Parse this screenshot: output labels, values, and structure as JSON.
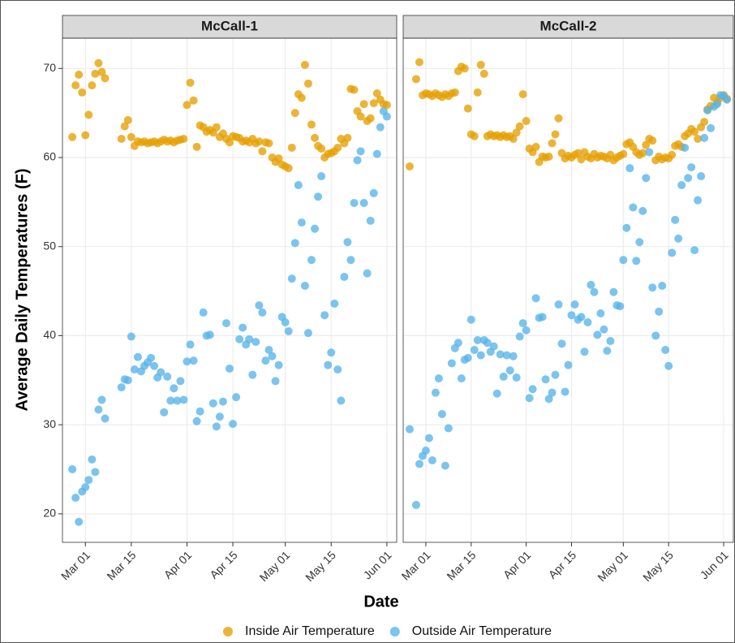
{
  "chart_data": {
    "type": "scatter",
    "x_label": "Date",
    "y_label": "Average Daily Temperatures (F)",
    "xlim": [
      "Feb 22",
      "Jun 04"
    ],
    "xticks": [
      "Mar 01",
      "Mar 15",
      "Apr 01",
      "Apr 15",
      "May 01",
      "May 15",
      "Jun 01"
    ],
    "ylim": [
      16.8,
      73.4
    ],
    "yticks": [
      20,
      30,
      40,
      50,
      60,
      70
    ],
    "grid": true,
    "legend": "bottom",
    "series": [
      {
        "name": "Inside Air Temperature",
        "color": "#E69F00"
      },
      {
        "name": "Outside Air Temperature",
        "color": "#56B4E9"
      }
    ],
    "panels": [
      {
        "title": "McCall-1",
        "x": [
          "Feb 25",
          "Feb 26",
          "Feb 27",
          "Feb 28",
          "Mar 01",
          "Mar 02",
          "Mar 03",
          "Mar 04",
          "Mar 05",
          "Mar 06",
          "Mar 07",
          "Mar 12",
          "Mar 13",
          "Mar 14",
          "Mar 15",
          "Mar 16",
          "Mar 17",
          "Mar 18",
          "Mar 19",
          "Mar 20",
          "Mar 21",
          "Mar 22",
          "Mar 23",
          "Mar 24",
          "Mar 25",
          "Mar 26",
          "Mar 27",
          "Mar 28",
          "Mar 29",
          "Mar 30",
          "Mar 31",
          "Apr 01",
          "Apr 02",
          "Apr 03",
          "Apr 04",
          "Apr 05",
          "Apr 06",
          "Apr 07",
          "Apr 08",
          "Apr 09",
          "Apr 10",
          "Apr 11",
          "Apr 12",
          "Apr 13",
          "Apr 14",
          "Apr 15",
          "Apr 16",
          "Apr 17",
          "Apr 18",
          "Apr 19",
          "Apr 20",
          "Apr 21",
          "Apr 22",
          "Apr 23",
          "Apr 24",
          "Apr 25",
          "Apr 26",
          "Apr 27",
          "Apr 28",
          "Apr 29",
          "Apr 30",
          "May 01",
          "May 02",
          "May 03",
          "May 04",
          "May 05",
          "May 06",
          "May 07",
          "May 08",
          "May 09",
          "May 10",
          "May 11",
          "May 12",
          "May 13",
          "May 14",
          "May 15",
          "May 16",
          "May 17",
          "May 18",
          "May 19",
          "May 20",
          "May 21",
          "May 22",
          "May 23",
          "May 24",
          "May 25",
          "May 26",
          "May 27",
          "May 28",
          "May 29",
          "May 30",
          "May 31",
          "Jun 01"
        ],
        "series": [
          {
            "values": [
              62.3,
              68.1,
              69.3,
              67.3,
              62.5,
              64.8,
              68.1,
              69.4,
              70.6,
              69.6,
              68.9,
              62.1,
              63.5,
              64.2,
              62.3,
              61.3,
              61.8,
              61.7,
              61.8,
              61.6,
              61.7,
              61.8,
              61.6,
              61.8,
              62.0,
              61.8,
              61.9,
              61.7,
              61.9,
              62.0,
              62.1,
              65.9,
              68.4,
              66.4,
              61.2,
              63.6,
              63.4,
              62.9,
              63.1,
              62.8,
              63.4,
              62.3,
              62.7,
              62.1,
              61.7,
              62.4,
              62.3,
              62.2,
              61.8,
              61.9,
              61.7,
              62.1,
              61.6,
              61.8,
              60.7,
              61.7,
              61.6,
              60.0,
              59.5,
              59.9,
              59.2,
              59.0,
              58.8,
              61.1,
              65.0,
              67.1,
              66.7,
              70.4,
              68.3,
              63.7,
              62.2,
              61.3,
              61.0,
              60.0,
              60.4,
              60.5,
              60.7,
              61.1,
              62.1,
              61.6,
              62.2,
              67.7,
              67.6,
              65.2,
              64.6,
              66.0,
              64.1,
              64.4,
              66.1,
              67.2,
              66.5,
              66.0,
              65.9
            ]
          },
          {
            "values": [
              25.0,
              21.8,
              19.1,
              22.5,
              23.0,
              23.8,
              26.1,
              24.7,
              31.7,
              32.8,
              30.7,
              34.2,
              35.1,
              35.0,
              39.9,
              36.2,
              37.6,
              36.0,
              36.6,
              37.0,
              37.5,
              36.6,
              35.3,
              35.9,
              31.4,
              35.4,
              32.7,
              34.1,
              32.7,
              34.9,
              32.8,
              37.1,
              39.0,
              37.2,
              30.4,
              31.5,
              42.6,
              40.0,
              40.1,
              32.4,
              29.8,
              30.9,
              32.6,
              41.4,
              36.3,
              30.1,
              33.1,
              39.6,
              40.9,
              39.0,
              39.6,
              35.6,
              39.3,
              43.4,
              42.6,
              37.2,
              38.4,
              37.7,
              34.9,
              36.7,
              42.1,
              41.5,
              40.5,
              46.4,
              50.4,
              56.9,
              52.7,
              45.6,
              40.3,
              48.5,
              52.0,
              55.6,
              57.9,
              42.3,
              36.7,
              38.1,
              43.6,
              36.2,
              32.7,
              46.6,
              50.5,
              48.5,
              54.9,
              59.7,
              60.7,
              54.9,
              47.0,
              52.9,
              56.0,
              60.4,
              63.4,
              65.2,
              64.6
            ]
          }
        ]
      },
      {
        "title": "McCall-2",
        "x": [
          "Feb 24",
          "Feb 26",
          "Feb 27",
          "Feb 28",
          "Mar 01",
          "Mar 02",
          "Mar 03",
          "Mar 04",
          "Mar 05",
          "Mar 06",
          "Mar 07",
          "Mar 08",
          "Mar 09",
          "Mar 10",
          "Mar 11",
          "Mar 12",
          "Mar 13",
          "Mar 14",
          "Mar 15",
          "Mar 16",
          "Mar 17",
          "Mar 18",
          "Mar 19",
          "Mar 20",
          "Mar 21",
          "Mar 22",
          "Mar 23",
          "Mar 24",
          "Mar 25",
          "Mar 26",
          "Mar 27",
          "Mar 28",
          "Mar 29",
          "Mar 30",
          "Mar 31",
          "Apr 01",
          "Apr 02",
          "Apr 03",
          "Apr 04",
          "Apr 05",
          "Apr 06",
          "Apr 07",
          "Apr 08",
          "Apr 09",
          "Apr 10",
          "Apr 11",
          "Apr 12",
          "Apr 13",
          "Apr 14",
          "Apr 15",
          "Apr 16",
          "Apr 17",
          "Apr 18",
          "Apr 19",
          "Apr 20",
          "Apr 21",
          "Apr 22",
          "Apr 23",
          "Apr 24",
          "Apr 25",
          "Apr 26",
          "Apr 27",
          "Apr 28",
          "Apr 29",
          "Apr 30",
          "May 01",
          "May 02",
          "May 03",
          "May 04",
          "May 05",
          "May 06",
          "May 07",
          "May 08",
          "May 09",
          "May 10",
          "May 11",
          "May 12",
          "May 13",
          "May 14",
          "May 15",
          "May 16",
          "May 17",
          "May 18",
          "May 19",
          "May 20",
          "May 21",
          "May 22",
          "May 23",
          "May 24",
          "May 25",
          "May 26",
          "May 27",
          "May 28",
          "May 29",
          "May 30",
          "May 31",
          "Jun 01",
          "Jun 02"
        ],
        "series": [
          {
            "values": [
              59.0,
              68.8,
              70.7,
              67.0,
              67.2,
              67.1,
              66.9,
              67.2,
              67.0,
              66.8,
              67.1,
              66.9,
              67.2,
              67.3,
              69.7,
              70.2,
              70.0,
              65.5,
              62.6,
              62.4,
              67.3,
              70.4,
              69.4,
              62.4,
              62.6,
              62.4,
              62.5,
              62.3,
              62.5,
              62.3,
              62.4,
              62.1,
              62.8,
              63.5,
              67.1,
              64.1,
              61.0,
              60.6,
              61.2,
              59.5,
              60.1,
              60.0,
              60.1,
              61.6,
              62.6,
              64.4,
              60.5,
              59.9,
              60.2,
              60.0,
              60.3,
              60.5,
              59.8,
              60.6,
              60.1,
              59.9,
              60.4,
              60.0,
              60.2,
              60.1,
              59.9,
              60.3,
              59.7,
              60.0,
              60.2,
              60.4,
              61.5,
              61.7,
              61.2,
              60.6,
              60.3,
              60.5,
              61.4,
              62.1,
              61.9,
              59.7,
              60.1,
              59.8,
              60.0,
              59.9,
              60.3,
              61.3,
              61.5,
              61.2,
              62.4,
              62.7,
              63.2,
              62.9,
              62.1,
              63.4,
              64.0,
              65.4,
              65.8,
              66.7,
              66.2,
              66.7,
              67.0,
              66.6
            ]
          },
          {
            "values": [
              29.5,
              21.0,
              25.6,
              26.5,
              27.1,
              28.5,
              26.0,
              33.6,
              35.2,
              31.2,
              25.4,
              29.6,
              36.9,
              38.6,
              39.2,
              35.2,
              37.3,
              37.5,
              41.8,
              38.4,
              39.5,
              37.8,
              39.5,
              39.2,
              38.2,
              38.8,
              33.5,
              37.9,
              35.4,
              37.8,
              36.1,
              37.7,
              35.3,
              39.9,
              41.4,
              40.6,
              33.0,
              34.0,
              44.2,
              42.0,
              42.1,
              35.1,
              32.9,
              33.6,
              35.6,
              43.5,
              39.1,
              33.7,
              36.7,
              42.3,
              43.5,
              41.8,
              42.1,
              38.2,
              41.5,
              45.7,
              44.9,
              40.1,
              42.5,
              40.7,
              38.3,
              39.4,
              44.9,
              43.4,
              43.3,
              48.5,
              52.1,
              58.8,
              54.4,
              48.4,
              50.5,
              54.0,
              57.7,
              60.6,
              45.4,
              40.0,
              42.7,
              45.6,
              38.4,
              36.6,
              49.3,
              53.0,
              50.9,
              56.9,
              61.1,
              57.7,
              58.9,
              49.6,
              55.2,
              57.9,
              62.2,
              65.3,
              63.3,
              65.7,
              66.0,
              67.0,
              66.9,
              66.5
            ]
          }
        ]
      }
    ]
  }
}
